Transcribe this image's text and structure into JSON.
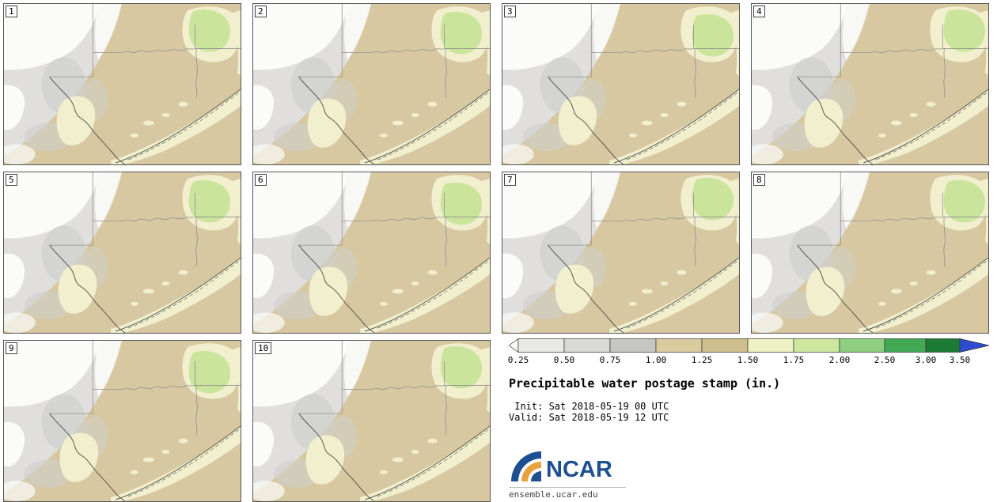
{
  "legend": {
    "title": "Precipitable water postage stamp (in.)",
    "init": " Init: Sat 2018-05-19 00 UTC",
    "valid": "Valid: Sat 2018-05-19 12 UTC"
  },
  "footer": {
    "logo_text": "NCAR",
    "site": "ensemble.ucar.edu"
  },
  "stamps": [
    {
      "label": "1"
    },
    {
      "label": "2"
    },
    {
      "label": "3"
    },
    {
      "label": "4"
    },
    {
      "label": "5"
    },
    {
      "label": "6"
    },
    {
      "label": "7"
    },
    {
      "label": "8"
    },
    {
      "label": "9"
    },
    {
      "label": "10"
    }
  ],
  "colorbar": {
    "ticks": [
      "0.25",
      "0.50",
      "0.75",
      "1.00",
      "1.25",
      "1.50",
      "1.75",
      "2.00",
      "2.50",
      "3.00",
      "3.50"
    ],
    "segment_colors": [
      "#f7f7f5",
      "#e9e9e7",
      "#d9d9d7",
      "#c6c6c4",
      "#dacb9f",
      "#cfbe8e",
      "#eef1c4",
      "#cde89e",
      "#8ed080",
      "#43a854",
      "#1b7a33",
      "#2f4bd0"
    ]
  },
  "map_palette": {
    "tan": "#d7c8a1",
    "gray_light": "#e0dfdd",
    "gray_mid": "#cfcfcd",
    "white": "#fbfbf9",
    "cream": "#f1efce",
    "green": "#cbe49c"
  }
}
